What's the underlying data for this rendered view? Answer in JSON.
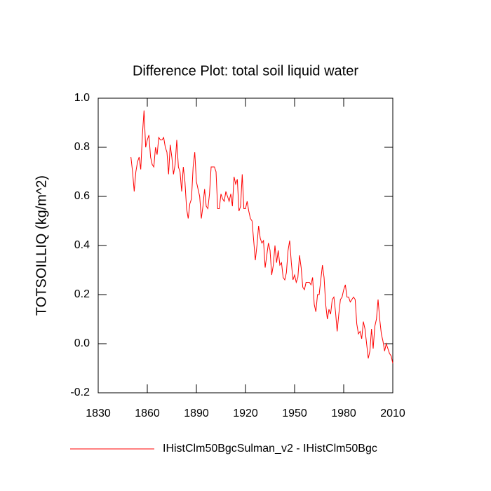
{
  "chart_data": {
    "type": "line",
    "title": "Difference Plot: total soil liquid water",
    "ylabel": "TOTSOILLIQ  (kg/m^2)",
    "x": [
      1850,
      1851,
      1852,
      1853,
      1854,
      1855,
      1856,
      1857,
      1858,
      1859,
      1860,
      1861,
      1862,
      1863,
      1864,
      1865,
      1866,
      1867,
      1868,
      1869,
      1870,
      1871,
      1872,
      1873,
      1874,
      1875,
      1876,
      1877,
      1878,
      1879,
      1880,
      1881,
      1882,
      1883,
      1884,
      1885,
      1886,
      1887,
      1888,
      1889,
      1890,
      1891,
      1892,
      1893,
      1894,
      1895,
      1896,
      1897,
      1898,
      1899,
      1900,
      1901,
      1902,
      1903,
      1904,
      1905,
      1906,
      1907,
      1908,
      1909,
      1910,
      1911,
      1912,
      1913,
      1914,
      1915,
      1916,
      1917,
      1918,
      1919,
      1920,
      1921,
      1922,
      1923,
      1924,
      1925,
      1926,
      1927,
      1928,
      1929,
      1930,
      1931,
      1932,
      1933,
      1934,
      1935,
      1936,
      1937,
      1938,
      1939,
      1940,
      1941,
      1942,
      1943,
      1944,
      1945,
      1946,
      1947,
      1948,
      1949,
      1950,
      1951,
      1952,
      1953,
      1954,
      1955,
      1956,
      1957,
      1958,
      1959,
      1960,
      1961,
      1962,
      1963,
      1964,
      1965,
      1966,
      1967,
      1968,
      1969,
      1970,
      1971,
      1972,
      1973,
      1974,
      1975,
      1976,
      1977,
      1978,
      1979,
      1980,
      1981,
      1982,
      1983,
      1984,
      1985,
      1986,
      1987,
      1988,
      1989,
      1990,
      1991,
      1992,
      1993,
      1994,
      1995,
      1996,
      1997,
      1998,
      1999,
      2000,
      2001,
      2002,
      2003,
      2004,
      2005,
      2006,
      2007,
      2008,
      2009,
      2010
    ],
    "series": [
      {
        "name": "IHistClm50BgcSulman_v2 - IHistClm50Bgc",
        "color": "#ff0000",
        "values": [
          0.76,
          0.7,
          0.62,
          0.7,
          0.74,
          0.76,
          0.71,
          0.85,
          0.95,
          0.8,
          0.83,
          0.85,
          0.76,
          0.73,
          0.72,
          0.8,
          0.77,
          0.84,
          0.83,
          0.83,
          0.84,
          0.8,
          0.78,
          0.69,
          0.81,
          0.76,
          0.69,
          0.73,
          0.83,
          0.72,
          0.7,
          0.62,
          0.72,
          0.66,
          0.55,
          0.51,
          0.57,
          0.59,
          0.72,
          0.78,
          0.66,
          0.63,
          0.6,
          0.51,
          0.56,
          0.63,
          0.56,
          0.55,
          0.61,
          0.72,
          0.72,
          0.72,
          0.7,
          0.55,
          0.55,
          0.61,
          0.59,
          0.58,
          0.62,
          0.6,
          0.58,
          0.61,
          0.56,
          0.68,
          0.65,
          0.67,
          0.54,
          0.56,
          0.69,
          0.55,
          0.55,
          0.58,
          0.54,
          0.51,
          0.5,
          0.42,
          0.34,
          0.4,
          0.48,
          0.43,
          0.41,
          0.42,
          0.31,
          0.36,
          0.41,
          0.38,
          0.28,
          0.32,
          0.4,
          0.33,
          0.38,
          0.32,
          0.33,
          0.27,
          0.26,
          0.29,
          0.38,
          0.42,
          0.33,
          0.26,
          0.28,
          0.25,
          0.27,
          0.36,
          0.31,
          0.23,
          0.22,
          0.25,
          0.25,
          0.25,
          0.24,
          0.27,
          0.16,
          0.13,
          0.2,
          0.2,
          0.26,
          0.32,
          0.27,
          0.16,
          0.1,
          0.14,
          0.12,
          0.18,
          0.19,
          0.13,
          0.05,
          0.12,
          0.18,
          0.19,
          0.22,
          0.24,
          0.19,
          0.19,
          0.17,
          0.18,
          0.19,
          0.18,
          0.08,
          0.04,
          0.05,
          0.02,
          0.09,
          0.06,
          0.0,
          -0.06,
          -0.03,
          0.06,
          -0.02,
          0.07,
          0.1,
          0.18,
          0.1,
          0.04,
          0.01,
          -0.03,
          0.0,
          -0.02,
          -0.04,
          -0.05,
          -0.08
        ]
      }
    ],
    "xlim": [
      1830,
      2010
    ],
    "xticks": [
      1830,
      1860,
      1890,
      1920,
      1950,
      1980,
      2010
    ],
    "ylim": [
      -0.2,
      1.0
    ],
    "yticks": [
      -0.2,
      {
        "value": 0,
        "label": "0.0"
      },
      0.2,
      0.4,
      0.6,
      0.8,
      {
        "value": 1,
        "label": "1.0"
      }
    ]
  }
}
